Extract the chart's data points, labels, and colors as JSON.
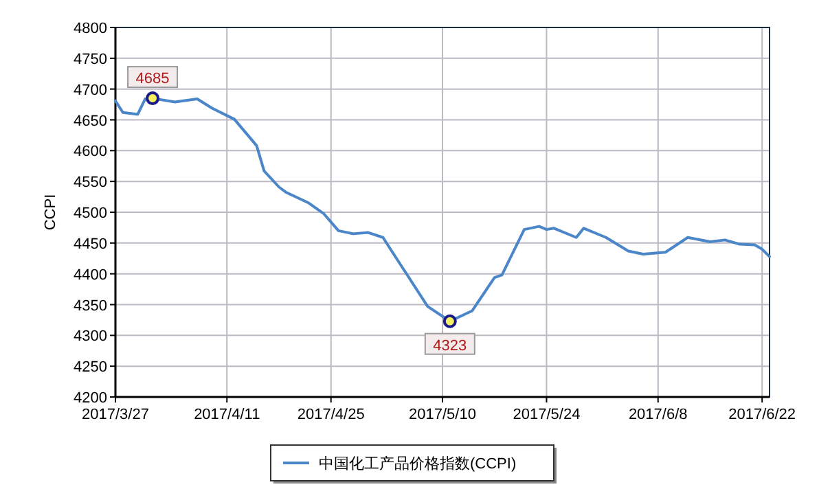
{
  "chart_data": {
    "type": "line",
    "ylabel": "CCPI",
    "legend": "bottom",
    "grid": true,
    "marker": "none",
    "line_style": "solid",
    "xlim": [
      "2017-03-27",
      "2017-06-23"
    ],
    "ylim": [
      4200,
      4800
    ],
    "yticks": [
      4200,
      4250,
      4300,
      4350,
      4400,
      4450,
      4500,
      4550,
      4600,
      4650,
      4700,
      4750,
      4800
    ],
    "xticks": [
      {
        "value": "2017-03-27",
        "label": "2017/3/27"
      },
      {
        "value": "2017-04-11",
        "label": "2017/4/11"
      },
      {
        "value": "2017-04-25",
        "label": "2017/4/25"
      },
      {
        "value": "2017-05-10",
        "label": "2017/5/10"
      },
      {
        "value": "2017-05-24",
        "label": "2017/5/24"
      },
      {
        "value": "2017-06-08",
        "label": "2017/6/8"
      },
      {
        "value": "2017-06-22",
        "label": "2017/6/22"
      }
    ],
    "x": [
      "2017-03-27",
      "2017-03-28",
      "2017-03-30",
      "2017-03-31",
      "2017-04-01",
      "2017-04-04",
      "2017-04-07",
      "2017-04-09",
      "2017-04-12",
      "2017-04-15",
      "2017-04-16",
      "2017-04-18",
      "2017-04-19",
      "2017-04-22",
      "2017-04-24",
      "2017-04-26",
      "2017-04-28",
      "2017-04-30",
      "2017-05-02",
      "2017-05-03",
      "2017-05-05",
      "2017-05-08",
      "2017-05-11",
      "2017-05-14",
      "2017-05-17",
      "2017-05-18",
      "2017-05-21",
      "2017-05-23",
      "2017-05-24",
      "2017-05-25",
      "2017-05-28",
      "2017-05-29",
      "2017-06-01",
      "2017-06-04",
      "2017-06-06",
      "2017-06-09",
      "2017-06-12",
      "2017-06-15",
      "2017-06-17",
      "2017-06-19",
      "2017-06-21",
      "2017-06-22",
      "2017-06-23"
    ],
    "series": [
      {
        "name": "中国化工产品价格指数(CCPI)",
        "color": "#4a86c8",
        "values": [
          4681,
          4662,
          4659,
          4684,
          4685,
          4679,
          4684,
          4669,
          4651,
          4608,
          4567,
          4541,
          4532,
          4515,
          4498,
          4470,
          4465,
          4467,
          4459,
          4440,
          4403,
          4347,
          4323,
          4340,
          4394,
          4398,
          4472,
          4477,
          4472,
          4474,
          4459,
          4474,
          4459,
          4437,
          4432,
          4435,
          4459,
          4452,
          4455,
          4448,
          4447,
          4440,
          4428
        ]
      }
    ],
    "annotations": [
      {
        "text": "4685",
        "x": "2017-04-01",
        "y": 4685
      },
      {
        "text": "4323",
        "x": "2017-05-11",
        "y": 4323
      }
    ]
  }
}
